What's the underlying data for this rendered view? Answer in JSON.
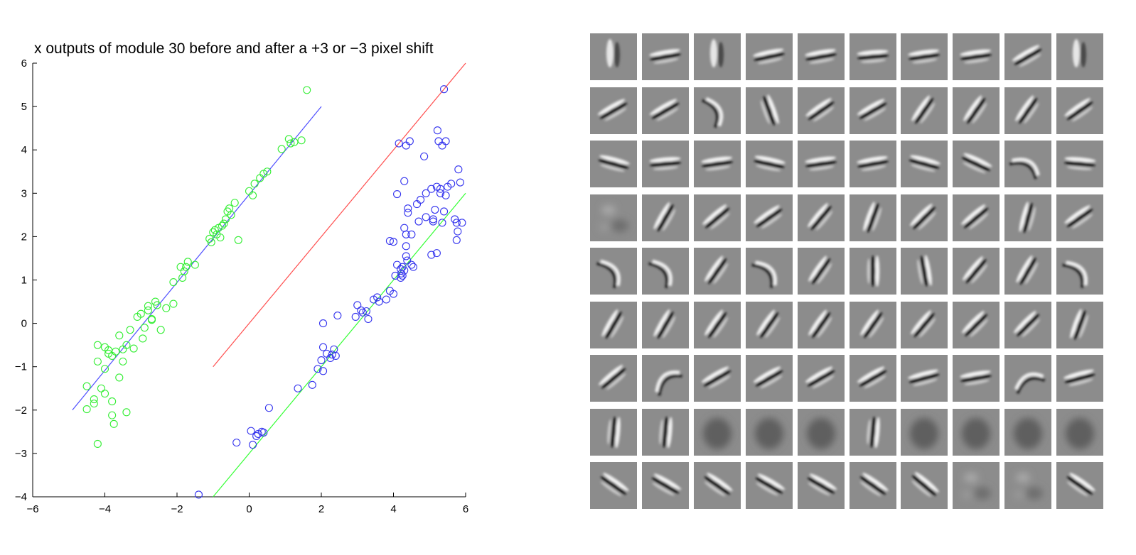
{
  "chart_data": {
    "type": "scatter",
    "title": "x outputs of module 30 before and after a +3 or −3 pixel shift",
    "xlabel": "",
    "ylabel": "",
    "xlim": [
      -6,
      6
    ],
    "ylim": [
      -4,
      6
    ],
    "x_ticks": [
      -6,
      -4,
      -2,
      0,
      2,
      4,
      6
    ],
    "y_ticks": [
      -4,
      -3,
      -2,
      -1,
      0,
      1,
      2,
      3,
      4,
      5,
      6
    ],
    "x_tick_labels": [
      "−6",
      "−4",
      "−2",
      "0",
      "2",
      "4",
      "6"
    ],
    "y_tick_labels": [
      "−4",
      "−3",
      "−2",
      "−1",
      "0",
      "1",
      "2",
      "3",
      "4",
      "5",
      "6"
    ],
    "grid": false,
    "lines": [
      {
        "color": "#4d4dff",
        "x": [
          -4.9,
          2.0
        ],
        "y": [
          -2.0,
          5.0
        ]
      },
      {
        "color": "#ff4d4d",
        "x": [
          -1.0,
          6.0
        ],
        "y": [
          -1.0,
          6.0
        ]
      },
      {
        "color": "#33ff33",
        "x": [
          -1.0,
          6.0
        ],
        "y": [
          -4.0,
          3.0
        ]
      }
    ],
    "series": [
      {
        "color": "#33ee33",
        "marker": "circle-open",
        "points": [
          [
            -4.5,
            -1.45
          ],
          [
            -4.5,
            -1.98
          ],
          [
            -4.3,
            -1.85
          ],
          [
            -4.3,
            -1.75
          ],
          [
            -4.2,
            -2.78
          ],
          [
            -4.2,
            -0.5
          ],
          [
            -4.2,
            -0.88
          ],
          [
            -4.1,
            -1.5
          ],
          [
            -4.0,
            -0.55
          ],
          [
            -4.0,
            -1.62
          ],
          [
            -4.0,
            -1.05
          ],
          [
            -3.9,
            -0.7
          ],
          [
            -3.9,
            -0.62
          ],
          [
            -3.8,
            -0.75
          ],
          [
            -3.8,
            -2.12
          ],
          [
            -3.8,
            -1.8
          ],
          [
            -3.75,
            -2.32
          ],
          [
            -3.7,
            -0.65
          ],
          [
            -3.6,
            -0.28
          ],
          [
            -3.6,
            -1.25
          ],
          [
            -3.5,
            -0.88
          ],
          [
            -3.5,
            -0.6
          ],
          [
            -3.4,
            -0.5
          ],
          [
            -3.4,
            -2.05
          ],
          [
            -3.3,
            -0.15
          ],
          [
            -3.2,
            -0.58
          ],
          [
            -3.1,
            0.15
          ],
          [
            -3.0,
            0.22
          ],
          [
            -2.95,
            -0.35
          ],
          [
            -2.9,
            -0.1
          ],
          [
            -2.8,
            0.3
          ],
          [
            -2.8,
            0.4
          ],
          [
            -2.7,
            0.08
          ],
          [
            -2.7,
            0.1
          ],
          [
            -2.6,
            0.5
          ],
          [
            -2.55,
            0.42
          ],
          [
            -2.45,
            -0.15
          ],
          [
            -2.3,
            0.35
          ],
          [
            -2.1,
            0.45
          ],
          [
            -2.1,
            0.95
          ],
          [
            -1.9,
            1.3
          ],
          [
            -1.85,
            1.05
          ],
          [
            -1.8,
            1.2
          ],
          [
            -1.75,
            1.3
          ],
          [
            -1.7,
            1.42
          ],
          [
            -1.5,
            1.35
          ],
          [
            -1.1,
            1.95
          ],
          [
            -1.05,
            1.87
          ],
          [
            -1.0,
            2.1
          ],
          [
            -0.95,
            2.15
          ],
          [
            -0.9,
            2.05
          ],
          [
            -0.85,
            2.2
          ],
          [
            -0.8,
            1.98
          ],
          [
            -0.75,
            2.25
          ],
          [
            -0.7,
            2.3
          ],
          [
            -0.65,
            2.4
          ],
          [
            -0.6,
            2.58
          ],
          [
            -0.55,
            2.65
          ],
          [
            -0.5,
            2.5
          ],
          [
            -0.4,
            2.78
          ],
          [
            -0.3,
            1.92
          ],
          [
            0.0,
            3.05
          ],
          [
            0.1,
            2.95
          ],
          [
            0.15,
            3.22
          ],
          [
            0.3,
            3.35
          ],
          [
            0.4,
            3.45
          ],
          [
            0.5,
            3.5
          ],
          [
            0.9,
            4.02
          ],
          [
            1.1,
            4.25
          ],
          [
            1.15,
            4.15
          ],
          [
            1.25,
            4.18
          ],
          [
            1.45,
            4.22
          ],
          [
            1.6,
            5.38
          ]
        ]
      },
      {
        "color": "#3333ee",
        "marker": "circle-open",
        "points": [
          [
            -1.4,
            -3.95
          ],
          [
            -0.35,
            -2.75
          ],
          [
            0.05,
            -2.48
          ],
          [
            0.1,
            -2.8
          ],
          [
            0.2,
            -2.6
          ],
          [
            0.25,
            -2.55
          ],
          [
            0.35,
            -2.5
          ],
          [
            0.4,
            -2.52
          ],
          [
            0.55,
            -1.95
          ],
          [
            1.35,
            -1.5
          ],
          [
            1.75,
            -1.42
          ],
          [
            1.9,
            -1.05
          ],
          [
            2.0,
            -0.85
          ],
          [
            2.05,
            -1.1
          ],
          [
            2.05,
            0.0
          ],
          [
            2.05,
            -0.55
          ],
          [
            2.15,
            -0.7
          ],
          [
            2.25,
            -0.8
          ],
          [
            2.3,
            -0.72
          ],
          [
            2.35,
            -0.6
          ],
          [
            2.4,
            -0.75
          ],
          [
            2.45,
            0.18
          ],
          [
            2.95,
            0.15
          ],
          [
            3.0,
            0.42
          ],
          [
            3.1,
            0.3
          ],
          [
            3.15,
            0.25
          ],
          [
            3.25,
            0.28
          ],
          [
            3.3,
            0.1
          ],
          [
            3.45,
            0.55
          ],
          [
            3.55,
            0.6
          ],
          [
            3.6,
            0.5
          ],
          [
            3.8,
            0.55
          ],
          [
            3.9,
            0.75
          ],
          [
            3.9,
            1.9
          ],
          [
            4.0,
            0.68
          ],
          [
            4.0,
            1.88
          ],
          [
            4.05,
            1.1
          ],
          [
            4.1,
            1.35
          ],
          [
            4.1,
            2.98
          ],
          [
            4.15,
            4.15
          ],
          [
            4.2,
            1.25
          ],
          [
            4.2,
            1.05
          ],
          [
            4.22,
            1.15
          ],
          [
            4.25,
            1.3
          ],
          [
            4.25,
            1.1
          ],
          [
            4.3,
            2.2
          ],
          [
            4.3,
            3.28
          ],
          [
            4.3,
            1.22
          ],
          [
            4.35,
            4.1
          ],
          [
            4.35,
            1.55
          ],
          [
            4.35,
            1.78
          ],
          [
            4.35,
            2.05
          ],
          [
            4.38,
            1.45
          ],
          [
            4.4,
            2.55
          ],
          [
            4.4,
            2.65
          ],
          [
            4.45,
            4.2
          ],
          [
            4.5,
            1.35
          ],
          [
            4.5,
            2.05
          ],
          [
            4.55,
            1.3
          ],
          [
            4.65,
            2.75
          ],
          [
            4.7,
            2.35
          ],
          [
            4.75,
            2.85
          ],
          [
            4.85,
            3.85
          ],
          [
            4.9,
            3.0
          ],
          [
            4.9,
            2.45
          ],
          [
            5.05,
            1.58
          ],
          [
            5.05,
            3.1
          ],
          [
            5.1,
            2.4
          ],
          [
            5.1,
            2.35
          ],
          [
            5.15,
            2.62
          ],
          [
            5.2,
            3.15
          ],
          [
            5.22,
            4.45
          ],
          [
            5.2,
            1.62
          ],
          [
            5.25,
            4.2
          ],
          [
            5.3,
            3.0
          ],
          [
            5.3,
            3.1
          ],
          [
            5.35,
            2.32
          ],
          [
            5.35,
            4.1
          ],
          [
            5.4,
            5.4
          ],
          [
            5.4,
            2.58
          ],
          [
            5.45,
            4.2
          ],
          [
            5.45,
            2.95
          ],
          [
            5.5,
            3.15
          ],
          [
            5.6,
            3.22
          ],
          [
            5.7,
            2.4
          ],
          [
            5.75,
            2.32
          ],
          [
            5.75,
            1.92
          ],
          [
            5.78,
            2.12
          ],
          [
            5.8,
            3.55
          ],
          [
            5.85,
            3.25
          ],
          [
            5.9,
            2.32
          ]
        ]
      }
    ]
  },
  "filters": {
    "rows": 9,
    "cols": 10,
    "patches": [
      [
        "vertical-blob-icon",
        "bar-icon",
        "vertical-blob-icon",
        "bar-icon",
        "bar-icon",
        "bar-icon",
        "bar-icon",
        "bar-icon",
        "bar-icon",
        "vertical-blob-icon"
      ],
      [
        "bar-icon",
        "bar-icon",
        "curve-icon",
        "bar-icon",
        "bar-icon",
        "bar-icon",
        "bar-icon",
        "bar-icon",
        "bar-icon",
        "bar-icon"
      ],
      [
        "bar-icon",
        "bar-icon",
        "bar-icon",
        "bar-icon",
        "bar-icon",
        "bar-icon",
        "bar-icon",
        "bar-icon",
        "curve-icon",
        "bar-icon"
      ],
      [
        "noise-icon",
        "bar-icon",
        "bar-icon",
        "bar-icon",
        "bar-icon",
        "bar-icon",
        "bar-icon",
        "bar-icon",
        "bar-icon",
        "bar-icon"
      ],
      [
        "curve-icon",
        "curve-icon",
        "bar-icon",
        "curve-icon",
        "bar-icon",
        "bar-icon",
        "bar-icon",
        "bar-icon",
        "bar-icon",
        "curve-icon"
      ],
      [
        "bar-icon",
        "bar-icon",
        "bar-icon",
        "bar-icon",
        "bar-icon",
        "bar-icon",
        "bar-icon",
        "bar-icon",
        "bar-icon",
        "bar-icon"
      ],
      [
        "bar-icon",
        "curve-icon",
        "bar-icon",
        "bar-icon",
        "bar-icon",
        "bar-icon",
        "bar-icon",
        "bar-icon",
        "curve-icon",
        "bar-icon"
      ],
      [
        "bar-icon",
        "bar-icon",
        "blob-icon",
        "blob-icon",
        "blob-icon",
        "bar-icon",
        "blob-icon",
        "blob-icon",
        "blob-icon",
        "blob-icon"
      ],
      [
        "bar-icon",
        "bar-icon",
        "bar-icon",
        "bar-icon",
        "bar-icon",
        "bar-icon",
        "bar-icon",
        "noise-icon",
        "noise-icon",
        "bar-icon"
      ]
    ],
    "angles": [
      [
        100,
        -10,
        95,
        -12,
        -10,
        -5,
        -8,
        -8,
        -30,
        95
      ],
      [
        -30,
        -30,
        70,
        70,
        -35,
        -30,
        -55,
        -55,
        -55,
        -35
      ],
      [
        15,
        -5,
        -8,
        12,
        -8,
        -10,
        15,
        25,
        35,
        5
      ],
      [
        0,
        -60,
        -40,
        -35,
        -50,
        -70,
        -45,
        -40,
        -75,
        -35
      ],
      [
        60,
        60,
        -55,
        55,
        -55,
        90,
        80,
        -50,
        -60,
        55
      ],
      [
        -60,
        -60,
        -55,
        -55,
        -55,
        -55,
        -50,
        -45,
        -45,
        -70
      ],
      [
        -40,
        -35,
        -30,
        -30,
        -30,
        -30,
        -15,
        -10,
        -20,
        -15
      ],
      [
        95,
        95,
        0,
        0,
        0,
        95,
        0,
        0,
        0,
        0
      ],
      [
        35,
        30,
        35,
        30,
        30,
        35,
        40,
        30,
        30,
        35
      ]
    ]
  }
}
